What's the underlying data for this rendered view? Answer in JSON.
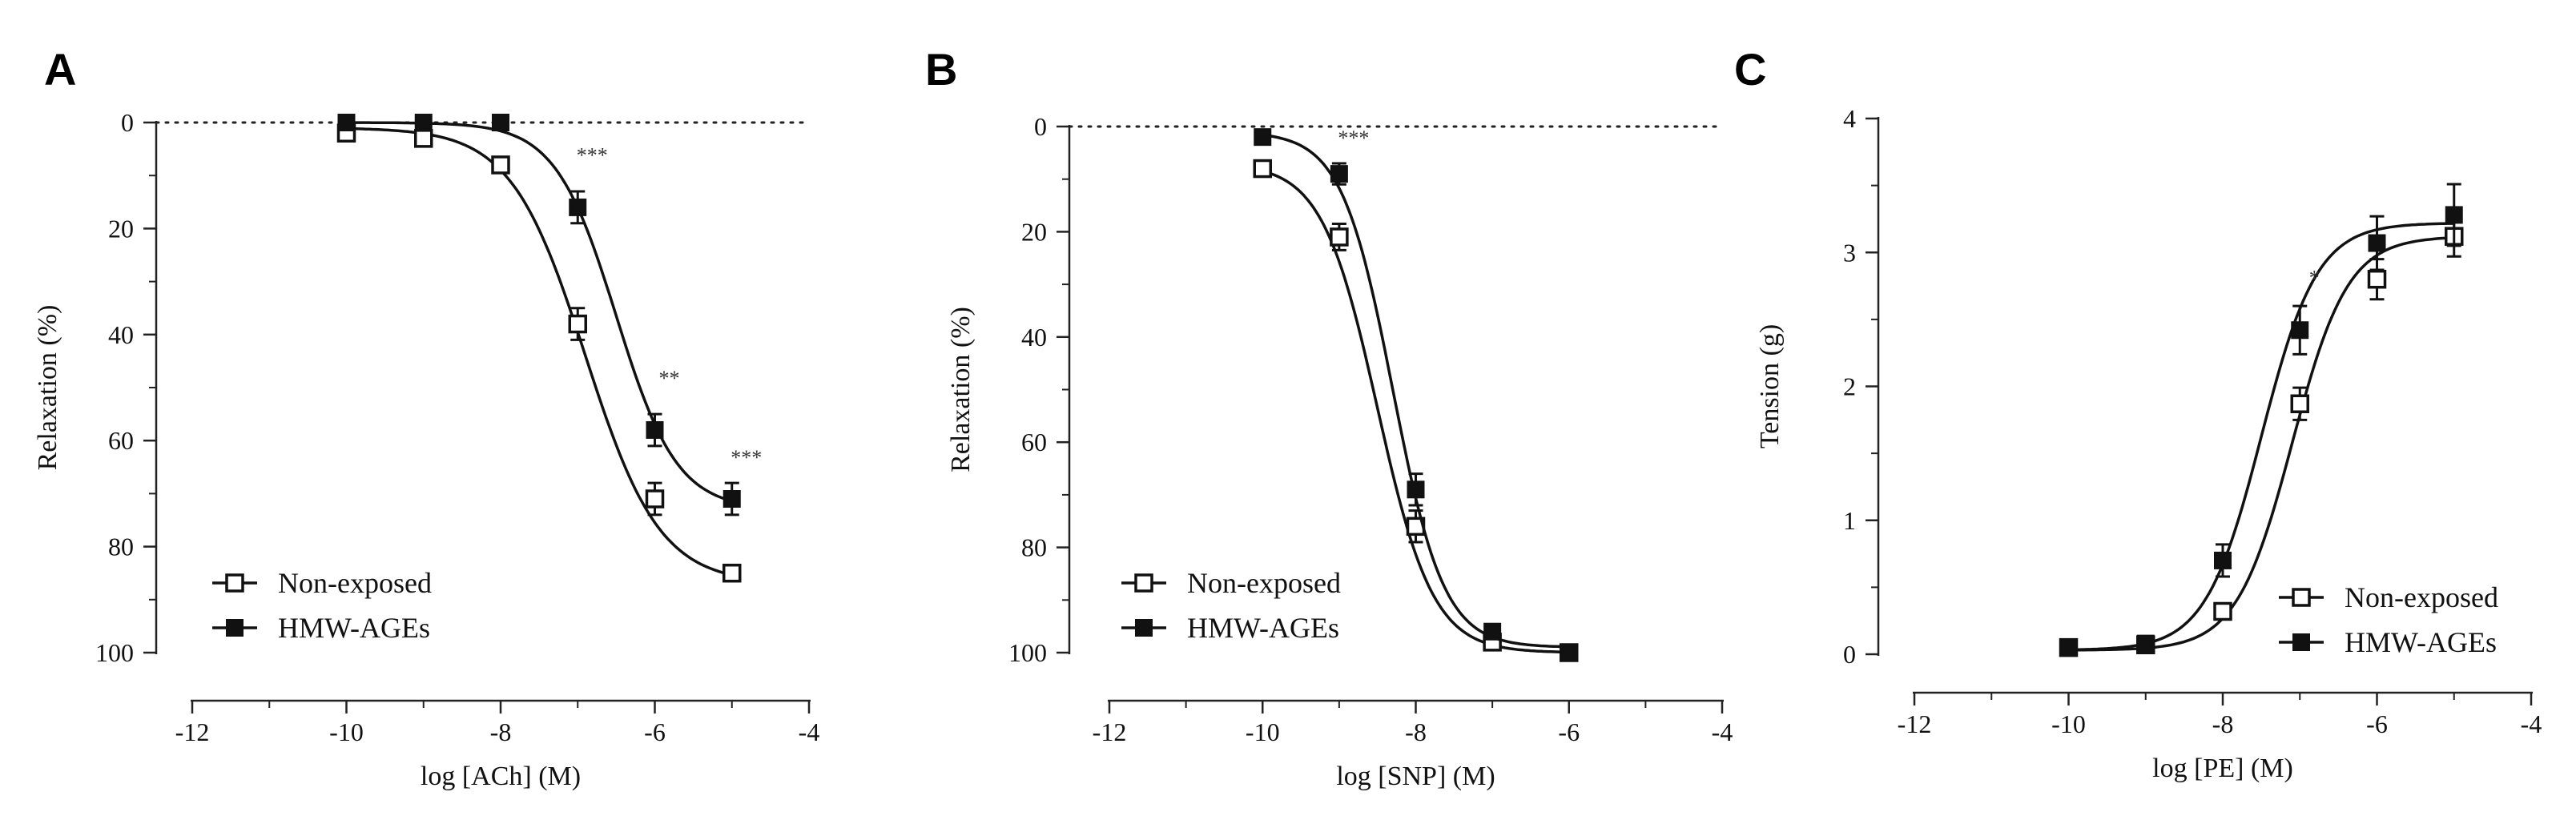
{
  "chart_data": [
    {
      "panel": "A",
      "type": "line",
      "xlabel": "log [ACh] (M)",
      "ylabel": "Relaxation (%)",
      "xlim": [
        -12,
        -4
      ],
      "ylim": [
        0,
        100
      ],
      "y_inverted": true,
      "xticks": [
        -12,
        -10,
        -8,
        -6,
        -4
      ],
      "yticks": [
        0,
        20,
        40,
        60,
        80,
        100
      ],
      "reference_line": 0,
      "legend_position": "bottom-left",
      "series": [
        {
          "name": "Non-exposed",
          "marker": "open-square",
          "x": [
            -10,
            -9,
            -8,
            -7,
            -6,
            -5
          ],
          "y": [
            2,
            3,
            8,
            38,
            71,
            85
          ],
          "err": [
            1,
            1,
            1.5,
            3,
            3,
            1.5
          ],
          "fit": {
            "bottom": 1,
            "top": 87,
            "logEC50": -6.9,
            "hill": 0.9
          }
        },
        {
          "name": "HMW-AGEs",
          "marker": "filled-square",
          "x": [
            -10,
            -9,
            -8,
            -7,
            -6,
            -5
          ],
          "y": [
            0,
            0,
            0,
            16,
            58,
            71
          ],
          "err": [
            0.5,
            0.5,
            0.5,
            3,
            3,
            3
          ],
          "fit": {
            "bottom": 0,
            "top": 73,
            "logEC50": -6.5,
            "hill": 1.1
          }
        }
      ],
      "annotations": [
        {
          "x": -7,
          "y": 6,
          "text": "***"
        },
        {
          "x": -6,
          "y": 48,
          "text": "**"
        },
        {
          "x": -5,
          "y": 63,
          "text": "***"
        }
      ]
    },
    {
      "panel": "B",
      "type": "line",
      "xlabel": "log [SNP] (M)",
      "ylabel": "Relaxation (%)",
      "xlim": [
        -12,
        -4
      ],
      "ylim": [
        0,
        100
      ],
      "y_inverted": true,
      "xticks": [
        -12,
        -10,
        -8,
        -6,
        -4
      ],
      "yticks": [
        0,
        20,
        40,
        60,
        80,
        100
      ],
      "reference_line": 0,
      "legend_position": "bottom-left",
      "series": [
        {
          "name": "Non-exposed",
          "marker": "open-square",
          "x": [
            -10,
            -9,
            -8,
            -7,
            -6
          ],
          "y": [
            8,
            21,
            76,
            98,
            100
          ],
          "err": [
            1,
            2.5,
            3,
            1,
            0.5
          ],
          "fit": {
            "bottom": 7,
            "top": 100,
            "logEC50": -8.5,
            "hill": 1.2
          }
        },
        {
          "name": "HMW-AGEs",
          "marker": "filled-square",
          "x": [
            -10,
            -9,
            -8,
            -7,
            -6
          ],
          "y": [
            2,
            9,
            69,
            96,
            100
          ],
          "err": [
            0.5,
            2,
            3,
            1,
            0.5
          ],
          "fit": {
            "bottom": 1,
            "top": 99,
            "logEC50": -8.3,
            "hill": 1.3
          }
        }
      ],
      "annotations": [
        {
          "x": -9,
          "y": 2,
          "text": "***"
        }
      ]
    },
    {
      "panel": "C",
      "type": "line",
      "xlabel": "log [PE] (M)",
      "ylabel": "Tension (g)",
      "xlim": [
        -12,
        -4
      ],
      "ylim": [
        0,
        4
      ],
      "y_inverted": false,
      "xticks": [
        -12,
        -10,
        -8,
        -6,
        -4
      ],
      "yticks": [
        0,
        1,
        2,
        3,
        4
      ],
      "legend_position": "bottom-right",
      "series": [
        {
          "name": "Non-exposed",
          "marker": "open-square",
          "x": [
            -10,
            -9,
            -8,
            -7,
            -6,
            -5
          ],
          "y": [
            0.05,
            0.07,
            0.32,
            1.87,
            2.8,
            3.12
          ],
          "err": [
            0.02,
            0.03,
            0.05,
            0.12,
            0.15,
            0.15
          ],
          "fit": {
            "bottom": 0.03,
            "top": 3.12,
            "logEC50": -7.1,
            "hill": 1.2
          }
        },
        {
          "name": "HMW-AGEs",
          "marker": "filled-square",
          "x": [
            -10,
            -9,
            -8,
            -7,
            -6,
            -5
          ],
          "y": [
            0.05,
            0.08,
            0.7,
            2.42,
            3.07,
            3.28
          ],
          "err": [
            0.02,
            0.03,
            0.12,
            0.18,
            0.2,
            0.23
          ],
          "fit": {
            "bottom": 0.03,
            "top": 3.22,
            "logEC50": -7.5,
            "hill": 1.2
          }
        }
      ],
      "annotations": [
        {
          "x": -7,
          "y": 2.82,
          "text": "*"
        }
      ]
    }
  ]
}
